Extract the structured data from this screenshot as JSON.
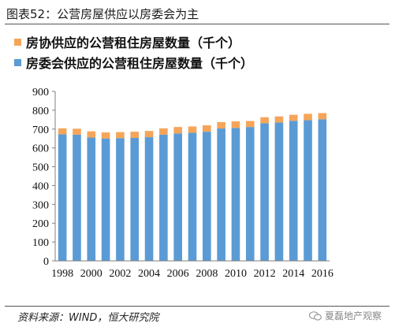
{
  "figure": {
    "title": "图表52：公营房屋供应以房委会为主",
    "source": "资料来源：WIND，恒大研究院",
    "watermark": "夏磊地产观察"
  },
  "colors": {
    "blue": "#5b9bd5",
    "orange": "#f5a55a"
  },
  "chart_data": {
    "type": "bar",
    "stacked": true,
    "categories": [
      "1998",
      "1999",
      "2000",
      "2001",
      "2002",
      "2003",
      "2004",
      "2005",
      "2006",
      "2007",
      "2008",
      "2009",
      "2010",
      "2011",
      "2012",
      "2013",
      "2014",
      "2015",
      "2016"
    ],
    "x_tick_labels": [
      "1998",
      "2000",
      "2002",
      "2004",
      "2006",
      "2008",
      "2010",
      "2012",
      "2014",
      "2016"
    ],
    "series": [
      {
        "name": "房委会供应的公营租住房屋数量（千个）",
        "values": [
          672,
          670,
          655,
          650,
          652,
          653,
          657,
          670,
          677,
          680,
          686,
          703,
          706,
          711,
          731,
          735,
          744,
          747,
          752
        ]
      },
      {
        "name": "房协供应的公营租住房屋数量（千个）",
        "values": [
          32,
          32,
          33,
          32,
          32,
          33,
          33,
          34,
          34,
          34,
          34,
          34,
          35,
          32,
          32,
          32,
          32,
          34,
          33
        ]
      }
    ],
    "ylim": [
      0,
      900
    ],
    "yticks": [
      0,
      100,
      200,
      300,
      400,
      500,
      600,
      700,
      800,
      900
    ],
    "legend_position": "top-left",
    "grid": false
  }
}
